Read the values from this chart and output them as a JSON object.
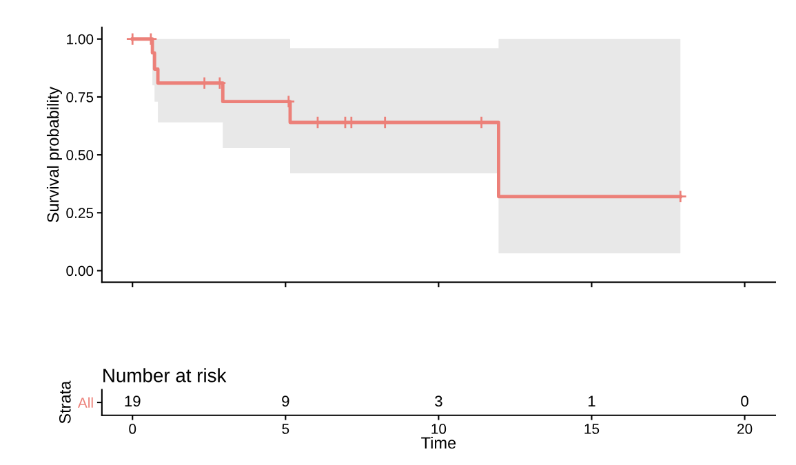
{
  "chart_data": [
    {
      "type": "step",
      "ylabel": "Survival probability",
      "xlim": [
        -1,
        21
      ],
      "ylim": [
        -0.05,
        1.05
      ],
      "xticks": [
        {
          "value": 0,
          "label": null
        },
        {
          "value": 5,
          "label": null
        },
        {
          "value": 10,
          "label": null
        },
        {
          "value": 15,
          "label": null
        },
        {
          "value": 20,
          "label": null
        }
      ],
      "yticks": [
        {
          "value": 0,
          "label": "0.00"
        },
        {
          "value": 0.25,
          "label": "0.25"
        },
        {
          "value": 0.5,
          "label": "0.50"
        },
        {
          "value": 0.75,
          "label": "0.75"
        },
        {
          "value": 1,
          "label": "1.00"
        }
      ],
      "tick_labels": "y",
      "grid": false,
      "legend": false,
      "series": [
        {
          "type": "step",
          "color": "#ec8079",
          "x": [
            0,
            0.65,
            0.72,
            0.83,
            2.95,
            5.15,
            11.96,
            17.9
          ],
          "values": [
            1,
            0.94,
            0.87,
            0.81,
            0.73,
            0.64,
            0.32,
            0.32
          ],
          "lower": [
            1,
            0.8,
            0.73,
            0.64,
            0.53,
            0.42,
            0.075,
            0.075
          ],
          "upper": [
            1,
            1,
            1,
            1,
            1,
            0.96,
            1,
            1
          ]
        },
        {
          "type": "scatter",
          "marker": "cross",
          "color": "#ec8079",
          "x": [
            0,
            0.6,
            2.35,
            2.85,
            5.1,
            6.05,
            6.95,
            7.15,
            8.25,
            11.4,
            17.9
          ],
          "values": [
            1,
            1,
            0.81,
            0.81,
            0.73,
            0.64,
            0.64,
            0.64,
            0.64,
            0.64,
            0.32
          ]
        }
      ]
    },
    {
      "type": "heatmap",
      "title": "Number at risk",
      "xlabel": "Time",
      "ylabel": "Strata",
      "xlim": [
        -1,
        21
      ],
      "xticks": [
        0,
        5,
        10,
        15,
        20
      ],
      "data_labels": true,
      "x": [
        0,
        5,
        10,
        15,
        20
      ],
      "y_categories": [
        "All"
      ],
      "color": "#ec8079",
      "cells": [
        [
          19,
          9,
          3,
          1,
          0
        ]
      ]
    }
  ]
}
